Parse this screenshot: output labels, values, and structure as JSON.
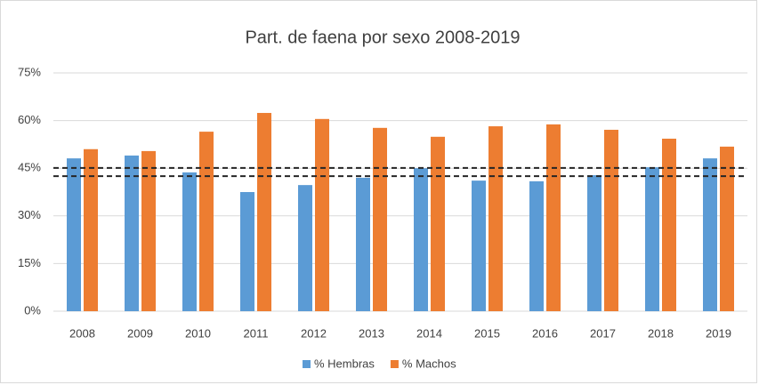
{
  "chart_data": {
    "type": "bar",
    "title": "Part. de faena por sexo 2008-2019",
    "categories": [
      "2008",
      "2009",
      "2010",
      "2011",
      "2012",
      "2013",
      "2014",
      "2015",
      "2016",
      "2017",
      "2018",
      "2019"
    ],
    "series": [
      {
        "name": "% Hembras",
        "color": "#5b9bd5",
        "values": [
          48.1,
          49.0,
          43.7,
          37.5,
          39.7,
          42.0,
          45.0,
          41.1,
          40.9,
          42.8,
          45.3,
          48.1
        ]
      },
      {
        "name": "% Machos",
        "color": "#ed7d31",
        "values": [
          51.0,
          50.4,
          56.5,
          62.4,
          60.5,
          57.7,
          54.9,
          58.2,
          58.8,
          57.1,
          54.3,
          51.8
        ]
      }
    ],
    "ylim": [
      0,
      75
    ],
    "yticks": [
      {
        "value": 0,
        "label": "0%"
      },
      {
        "value": 15,
        "label": "15%"
      },
      {
        "value": 30,
        "label": "30%"
      },
      {
        "value": 45,
        "label": "45%"
      },
      {
        "value": 60,
        "label": "60%"
      },
      {
        "value": 75,
        "label": "75%"
      }
    ],
    "grid": true,
    "legend": "bottom",
    "reference_lines": [
      45.1,
      42.5
    ]
  }
}
